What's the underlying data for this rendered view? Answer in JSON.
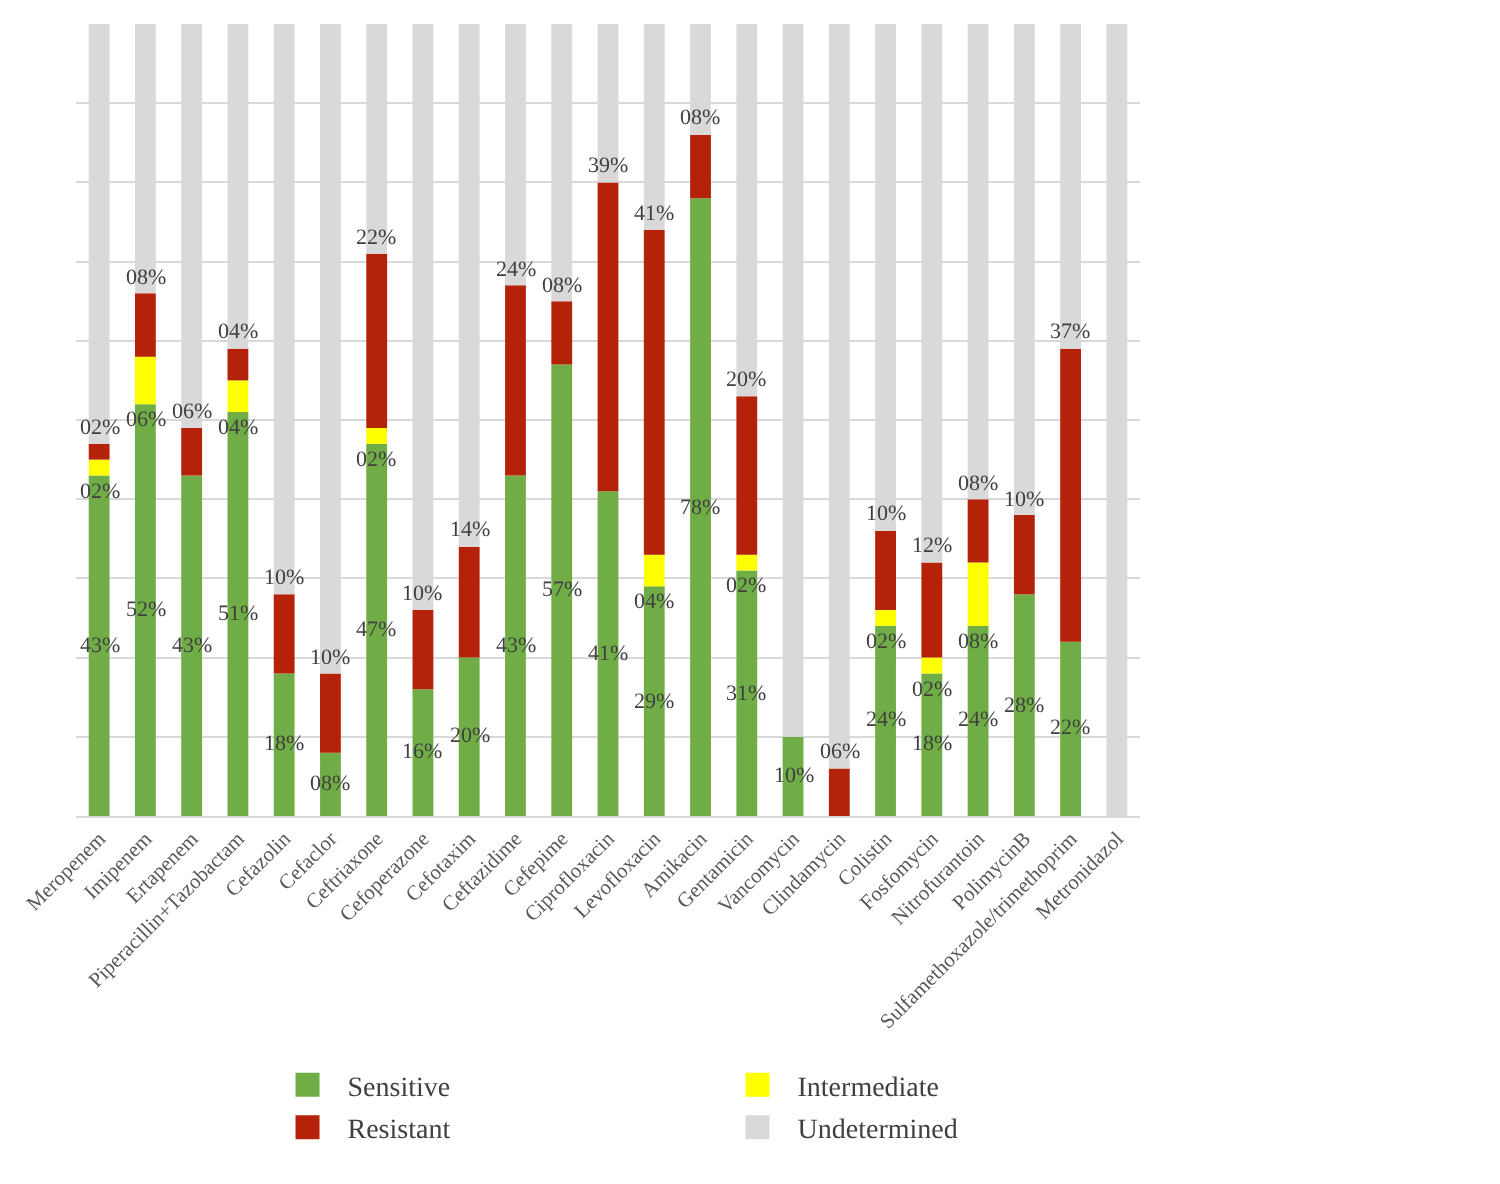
{
  "chart_data": {
    "type": "bar",
    "stacked": true,
    "categories": [
      "Meropenem",
      "Imipenem",
      "Ertapenem",
      "Piperacillin+Tazobactam",
      "Cefazolin",
      "Cefaclor",
      "Ceftriaxone",
      "Cefoperazone",
      "Cefotaxim",
      "Ceftazidime",
      "Cefepime",
      "Ciprofloxacin",
      "Levofloxacin",
      "Amikacin",
      "Gentamicin",
      "Vancomycin",
      "Clindamycin",
      "Colistin",
      "Fosfomycin",
      "Nitrofurantoin",
      "PolimycinB",
      "Sulfamethoxazole/trimethoprim",
      "Metronidazol"
    ],
    "series": [
      {
        "name": "Sensitive",
        "color": "#70ad47",
        "values": [
          43,
          52,
          43,
          51,
          18,
          8,
          47,
          16,
          20,
          43,
          57,
          41,
          29,
          78,
          31,
          10,
          0,
          24,
          18,
          24,
          28,
          22,
          0
        ],
        "value_labels": [
          "43%",
          "52%",
          "43%",
          "51%",
          "18%",
          "08%",
          "47%",
          "16%",
          "20%",
          "43%",
          "57%",
          "41%",
          "29%",
          "78%",
          "31%",
          "10%",
          null,
          "24%",
          "18%",
          "24%",
          "28%",
          "22%",
          null
        ]
      },
      {
        "name": "Intermediate",
        "color": "#ffff00",
        "values": [
          2,
          6,
          0,
          4,
          0,
          0,
          2,
          0,
          0,
          0,
          0,
          0,
          4,
          0,
          2,
          0,
          0,
          2,
          2,
          8,
          0,
          0,
          0
        ],
        "value_labels": [
          "02%",
          "06%",
          null,
          "04%",
          null,
          null,
          "02%",
          null,
          null,
          null,
          null,
          null,
          "04%",
          null,
          "02%",
          null,
          null,
          "02%",
          "02%",
          "08%",
          null,
          null,
          null
        ]
      },
      {
        "name": "Resistant",
        "color": "#b5220a",
        "values": [
          2,
          8,
          6,
          4,
          10,
          10,
          22,
          10,
          14,
          24,
          8,
          39,
          41,
          8,
          20,
          0,
          6,
          10,
          12,
          8,
          10,
          37,
          0
        ],
        "value_labels": [
          "02%",
          "08%",
          "06%",
          "04%",
          "10%",
          "10%",
          "22%",
          "10%",
          "14%",
          "24%",
          "08%",
          "39%",
          "41%",
          "08%",
          "20%",
          null,
          "06%",
          "10%",
          "12%",
          "08%",
          "10%",
          "37%",
          null
        ]
      },
      {
        "name": "Undetermined",
        "color": "#d9d9d9",
        "values": [
          53,
          34,
          51,
          41,
          72,
          82,
          29,
          74,
          66,
          33,
          35,
          20,
          26,
          14,
          47,
          90,
          94,
          64,
          68,
          60,
          62,
          41,
          100
        ]
      }
    ],
    "ylim": [
      0,
      100
    ],
    "yticks": [
      {
        "value": 0,
        "label": null
      },
      {
        "value": 10,
        "label": null
      },
      {
        "value": 20,
        "label": null
      },
      {
        "value": 30,
        "label": null
      },
      {
        "value": 40,
        "label": null
      },
      {
        "value": 50,
        "label": null
      },
      {
        "value": 60,
        "label": null
      },
      {
        "value": 70,
        "label": null
      },
      {
        "value": 80,
        "label": null
      },
      {
        "value": 90,
        "label": null
      }
    ],
    "grid": "y",
    "tick_labels": "x",
    "legend": "bottom"
  }
}
